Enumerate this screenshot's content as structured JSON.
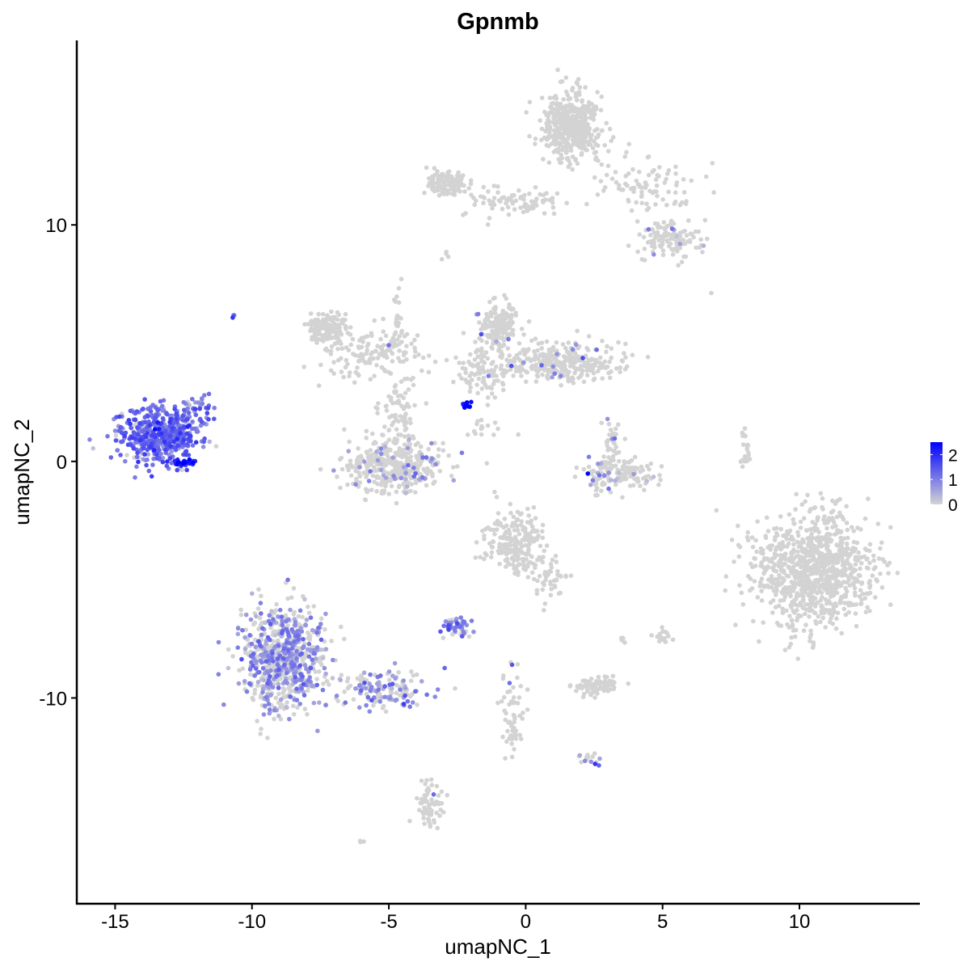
{
  "chart_data": {
    "type": "scatter",
    "title": "Gpnmb",
    "xlabel": "umapNC_1",
    "ylabel": "umapNC_2",
    "xlim": [
      -16.4,
      14.4
    ],
    "ylim": [
      -18.7,
      17.8
    ],
    "xticks": [
      -15,
      -10,
      -5,
      0,
      5,
      10
    ],
    "xtick_labels": [
      "-15",
      "-10",
      "-5",
      "0",
      "5",
      "10"
    ],
    "yticks": [
      -10,
      0,
      10
    ],
    "ytick_labels": [
      "-10",
      "0",
      "10"
    ],
    "grid": false,
    "legend": {
      "position": "right",
      "type": "colorbar",
      "range": [
        0,
        2.5
      ],
      "ticks": [
        0,
        1,
        2
      ],
      "tick_labels": [
        "0",
        "1",
        "2"
      ],
      "low_color": "#d3d3d3",
      "high_color": "#0000ff"
    },
    "point_groups_note_free": true,
    "clusters": [
      {
        "center": [
          1.7,
          14.2
        ],
        "spread": [
          0.6,
          0.75
        ],
        "n": 450,
        "expr_frac": 0.0,
        "expr_mean": 0
      },
      {
        "center": [
          4.3,
          11.6
        ],
        "spread": [
          0.9,
          0.7
        ],
        "n": 90,
        "expr_frac": 0.0,
        "expr_mean": 0
      },
      {
        "center": [
          5.2,
          9.4
        ],
        "spread": [
          0.6,
          0.45
        ],
        "n": 120,
        "expr_frac": 0.05,
        "expr_mean": 0.8
      },
      {
        "center": [
          -2.9,
          11.8
        ],
        "spread": [
          0.45,
          0.3
        ],
        "n": 120,
        "expr_frac": 0.0,
        "expr_mean": 0
      },
      {
        "center": [
          -0.5,
          11.0
        ],
        "spread": [
          1.2,
          0.35
        ],
        "n": 80,
        "expr_frac": 0.0,
        "expr_mean": 0
      },
      {
        "center": [
          -7.2,
          5.6
        ],
        "spread": [
          0.35,
          0.45
        ],
        "n": 140,
        "expr_frac": 0.0,
        "expr_mean": 0
      },
      {
        "center": [
          -5.7,
          4.6
        ],
        "spread": [
          1.0,
          0.6
        ],
        "n": 140,
        "expr_frac": 0.02,
        "expr_mean": 0.8
      },
      {
        "center": [
          -4.6,
          2.2
        ],
        "spread": [
          0.4,
          0.9
        ],
        "n": 80,
        "expr_frac": 0.0,
        "expr_mean": 0
      },
      {
        "center": [
          -4.8,
          -0.2
        ],
        "spread": [
          1.0,
          0.6
        ],
        "n": 380,
        "expr_frac": 0.12,
        "expr_mean": 0.7
      },
      {
        "center": [
          -1.0,
          5.6
        ],
        "spread": [
          0.45,
          0.6
        ],
        "n": 160,
        "expr_frac": 0.04,
        "expr_mean": 0.9
      },
      {
        "center": [
          1.2,
          4.2
        ],
        "spread": [
          1.3,
          0.45
        ],
        "n": 320,
        "expr_frac": 0.03,
        "expr_mean": 0.8
      },
      {
        "center": [
          -1.6,
          3.7
        ],
        "spread": [
          0.5,
          0.7
        ],
        "n": 80,
        "expr_frac": 0.03,
        "expr_mean": 0.8
      },
      {
        "center": [
          -13.4,
          1.1
        ],
        "spread": [
          0.8,
          0.65
        ],
        "n": 520,
        "expr_frac": 0.85,
        "expr_mean": 1.2
      },
      {
        "center": [
          -11.9,
          2.1
        ],
        "spread": [
          0.3,
          0.4
        ],
        "n": 30,
        "expr_frac": 0.8,
        "expr_mean": 1.1
      },
      {
        "center": [
          -12.5,
          -0.05
        ],
        "spread": [
          0.25,
          0.1
        ],
        "n": 30,
        "expr_frac": 1.0,
        "expr_mean": 2.1
      },
      {
        "center": [
          3.4,
          -0.6
        ],
        "spread": [
          0.7,
          0.35
        ],
        "n": 150,
        "expr_frac": 0.12,
        "expr_mean": 0.8
      },
      {
        "center": [
          3.1,
          0.7
        ],
        "spread": [
          0.2,
          0.5
        ],
        "n": 40,
        "expr_frac": 0.05,
        "expr_mean": 0.8
      },
      {
        "center": [
          10.6,
          -4.6
        ],
        "spread": [
          1.25,
          1.3
        ],
        "n": 950,
        "expr_frac": 0.0,
        "expr_mean": 0
      },
      {
        "center": [
          -8.9,
          -8.3
        ],
        "spread": [
          0.85,
          1.2
        ],
        "n": 700,
        "expr_frac": 0.5,
        "expr_mean": 0.8
      },
      {
        "center": [
          -5.3,
          -9.6
        ],
        "spread": [
          0.9,
          0.45
        ],
        "n": 160,
        "expr_frac": 0.5,
        "expr_mean": 0.9
      },
      {
        "center": [
          -0.4,
          -3.5
        ],
        "spread": [
          0.6,
          0.7
        ],
        "n": 220,
        "expr_frac": 0.02,
        "expr_mean": 0.7
      },
      {
        "center": [
          0.9,
          -4.9
        ],
        "spread": [
          0.3,
          0.5
        ],
        "n": 40,
        "expr_frac": 0.0,
        "expr_mean": 0
      },
      {
        "center": [
          -2.5,
          -7.0
        ],
        "spread": [
          0.3,
          0.2
        ],
        "n": 50,
        "expr_frac": 0.7,
        "expr_mean": 1.0
      },
      {
        "center": [
          2.6,
          -9.5
        ],
        "spread": [
          0.45,
          0.2
        ],
        "n": 90,
        "expr_frac": 0.0,
        "expr_mean": 0
      },
      {
        "center": [
          -3.5,
          -14.5
        ],
        "spread": [
          0.25,
          0.5
        ],
        "n": 70,
        "expr_frac": 0.02,
        "expr_mean": 1.5
      },
      {
        "center": [
          -0.5,
          -10.5
        ],
        "spread": [
          0.25,
          1.1
        ],
        "n": 60,
        "expr_frac": 0.05,
        "expr_mean": 0.8
      },
      {
        "center": [
          2.2,
          -12.5
        ],
        "spread": [
          0.25,
          0.25
        ],
        "n": 15,
        "expr_frac": 0.5,
        "expr_mean": 1.0
      },
      {
        "center": [
          8.0,
          0.5
        ],
        "spread": [
          0.1,
          0.5
        ],
        "n": 20,
        "expr_frac": 0.0,
        "expr_mean": 0
      },
      {
        "center": [
          -2.2,
          2.4
        ],
        "spread": [
          0.08,
          0.08
        ],
        "n": 12,
        "expr_frac": 1.0,
        "expr_mean": 2.5
      },
      {
        "center": [
          -4.7,
          6.0
        ],
        "spread": [
          0.1,
          1.0
        ],
        "n": 25,
        "expr_frac": 0.0,
        "expr_mean": 0
      },
      {
        "center": [
          -1.5,
          1.2
        ],
        "spread": [
          0.4,
          0.3
        ],
        "n": 15,
        "expr_frac": 0.0,
        "expr_mean": 0
      },
      {
        "center": [
          5.0,
          -7.4
        ],
        "spread": [
          0.2,
          0.2
        ],
        "n": 15,
        "expr_frac": 0.0,
        "expr_mean": 0
      },
      {
        "center": [
          3.5,
          -7.6
        ],
        "spread": [
          0.1,
          0.1
        ],
        "n": 5,
        "expr_frac": 0.0,
        "expr_mean": 0
      },
      {
        "center": [
          -10.6,
          6.1
        ],
        "spread": [
          0.05,
          0.05
        ],
        "n": 3,
        "expr_frac": 1.0,
        "expr_mean": 1.3
      },
      {
        "center": [
          -6.0,
          -16.0
        ],
        "spread": [
          0.1,
          0.05
        ],
        "n": 3,
        "expr_frac": 0.0,
        "expr_mean": 0
      },
      {
        "center": [
          6.8,
          7.1
        ],
        "spread": [
          0.02,
          0.02
        ],
        "n": 1,
        "expr_frac": 0.0,
        "expr_mean": 0
      },
      {
        "center": [
          -2.9,
          8.7
        ],
        "spread": [
          0.1,
          0.1
        ],
        "n": 4,
        "expr_frac": 0.5,
        "expr_mean": 0.8
      },
      {
        "center": [
          2.3,
          -0.5
        ],
        "spread": [
          0.03,
          0.03
        ],
        "n": 1,
        "expr_frac": 1.0,
        "expr_mean": 2.4
      }
    ]
  }
}
